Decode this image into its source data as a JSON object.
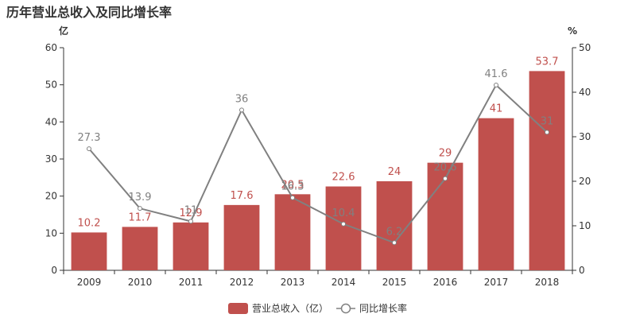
{
  "title": "历年营业总收入及同比增长率",
  "chart_data": {
    "type": "bar",
    "categories": [
      "2009",
      "2010",
      "2011",
      "2012",
      "2013",
      "2014",
      "2015",
      "2016",
      "2017",
      "2018"
    ],
    "series": [
      {
        "name": "营业总收入（亿）",
        "type": "bar",
        "axis": "left",
        "color": "#c0504d",
        "values": [
          10.2,
          11.7,
          12.9,
          17.6,
          20.5,
          22.6,
          24,
          29,
          41,
          53.7
        ]
      },
      {
        "name": "同比增长率",
        "type": "line",
        "axis": "right",
        "color": "#808080",
        "values": [
          27.3,
          13.9,
          11,
          36,
          16.3,
          10.4,
          6.2,
          20.6,
          41.6,
          31
        ]
      }
    ],
    "y_left": {
      "unit": "亿",
      "min": 0,
      "max": 60,
      "ticks": [
        0,
        10,
        20,
        30,
        40,
        50,
        60
      ]
    },
    "y_right": {
      "unit": "%",
      "min": 0,
      "max": 50,
      "ticks": [
        0,
        10,
        20,
        30,
        40,
        50
      ]
    },
    "grid": false,
    "legend_position": "bottom-center"
  }
}
